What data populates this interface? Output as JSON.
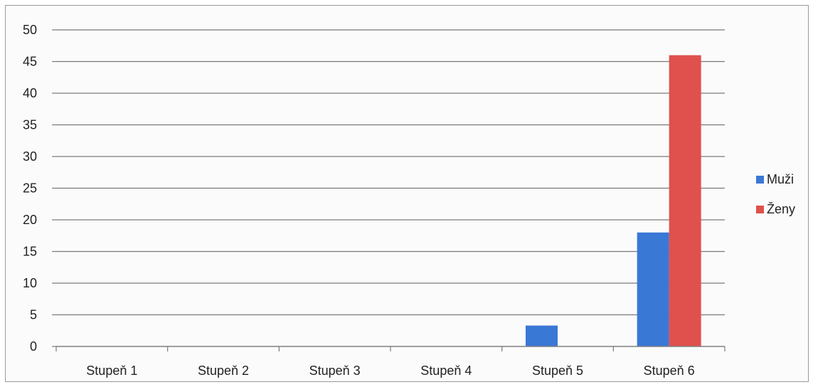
{
  "chart_data": {
    "type": "bar",
    "title": "",
    "xlabel": "",
    "ylabel": "",
    "categories": [
      "Stupeň 1",
      "Stupeň 2",
      "Stupeň 3",
      "Stupeň 4",
      "Stupeň 5",
      "Stupeň 6"
    ],
    "series": [
      {
        "name": "Muži",
        "color": "#3a78d6",
        "values": [
          0,
          0,
          0,
          0,
          3.3,
          18
        ]
      },
      {
        "name": "Ženy",
        "color": "#e0504c",
        "values": [
          0,
          0,
          0,
          0,
          0,
          46
        ]
      }
    ],
    "ylim": [
      0,
      50
    ],
    "yticks": [
      "0",
      "5",
      "10",
      "15",
      "20",
      "25",
      "30",
      "35",
      "40",
      "45",
      "50"
    ],
    "grid": true,
    "legend_position": "right"
  }
}
